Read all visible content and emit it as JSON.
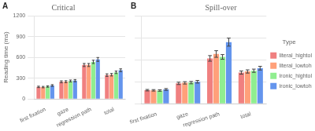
{
  "chart_data": [
    {
      "type": "bar",
      "title": "Critical",
      "panel_label": "A",
      "ylabel": "Reading time (ms)",
      "categories": [
        "first fixation",
        "gaze",
        "regression path",
        "total"
      ],
      "series": [
        {
          "name": "literal_hightolow",
          "color": "#F08080",
          "values": [
            175,
            248,
            490,
            345
          ],
          "errors": [
            10,
            14,
            22,
            18
          ]
        },
        {
          "name": "literal_lowtohigh",
          "color": "#FFA07A",
          "values": [
            172,
            250,
            490,
            350
          ],
          "errors": [
            10,
            14,
            22,
            18
          ]
        },
        {
          "name": "ironic_hightolow",
          "color": "#90EE90",
          "values": [
            180,
            260,
            535,
            385
          ],
          "errors": [
            10,
            14,
            24,
            18
          ]
        },
        {
          "name": "ironic_lowtohigh",
          "color": "#6495ED",
          "values": [
            195,
            265,
            570,
            415
          ],
          "errors": [
            12,
            16,
            28,
            20
          ]
        }
      ],
      "ylim": [
        0,
        1200
      ],
      "yticks": [
        0,
        300,
        600,
        900,
        1200
      ],
      "grid": true
    },
    {
      "type": "bar",
      "title": "Spill-over",
      "panel_label": "B",
      "categories": [
        "first fixation",
        "gaze",
        "regression path",
        "total"
      ],
      "series": [
        {
          "name": "literal_hightolow",
          "color": "#F08080",
          "values": [
            185,
            278,
            618,
            425
          ],
          "errors": [
            10,
            16,
            38,
            22
          ]
        },
        {
          "name": "literal_lowtohigh",
          "color": "#FFA07A",
          "values": [
            183,
            285,
            678,
            440
          ],
          "errors": [
            10,
            16,
            45,
            22
          ]
        },
        {
          "name": "ironic_hightolow",
          "color": "#90EE90",
          "values": [
            180,
            288,
            638,
            450
          ],
          "errors": [
            10,
            16,
            32,
            22
          ]
        },
        {
          "name": "ironic_lowtohigh",
          "color": "#6495ED",
          "values": [
            195,
            300,
            840,
            485
          ],
          "errors": [
            12,
            18,
            55,
            25
          ]
        }
      ],
      "ylim": [
        0,
        1200
      ],
      "yticks": [
        0,
        300,
        600,
        900,
        1200
      ],
      "grid": true,
      "legend": "right",
      "legend_title": "Type",
      "tick_labels": "x"
    }
  ]
}
